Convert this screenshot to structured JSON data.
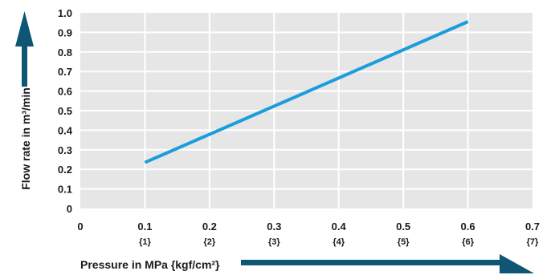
{
  "chart_data": {
    "type": "line",
    "xlabel": "Pressure in MPa {kgf/cm²}",
    "ylabel": "Flow rate in m³/min",
    "x_ticks": [
      {
        "value": 0,
        "label": "0",
        "sub": ""
      },
      {
        "value": 0.1,
        "label": "0.1",
        "sub": "{1}"
      },
      {
        "value": 0.2,
        "label": "0.2",
        "sub": "{2}"
      },
      {
        "value": 0.3,
        "label": "0.3",
        "sub": "{3}"
      },
      {
        "value": 0.4,
        "label": "0.4",
        "sub": "{4}"
      },
      {
        "value": 0.5,
        "label": "0.5",
        "sub": "{5}"
      },
      {
        "value": 0.6,
        "label": "0.6",
        "sub": "{6}"
      },
      {
        "value": 0.7,
        "label": "0.7",
        "sub": "{7}"
      }
    ],
    "y_ticks": [
      "0",
      "0.1",
      "0.2",
      "0.3",
      "0.4",
      "0.5",
      "0.6",
      "0.7",
      "0.8",
      "0.9",
      "1.0"
    ],
    "xlim": [
      0,
      0.7
    ],
    "ylim": [
      0,
      1.0
    ],
    "grid": true,
    "series": [
      {
        "x": [
          0.1,
          0.6
        ],
        "y": [
          0.235,
          0.955
        ]
      }
    ],
    "colors": {
      "plot_bg": "#e6e6e6",
      "grid": "#ffffff",
      "line": "#1b9ddb",
      "arrow": "#0e5673"
    }
  }
}
